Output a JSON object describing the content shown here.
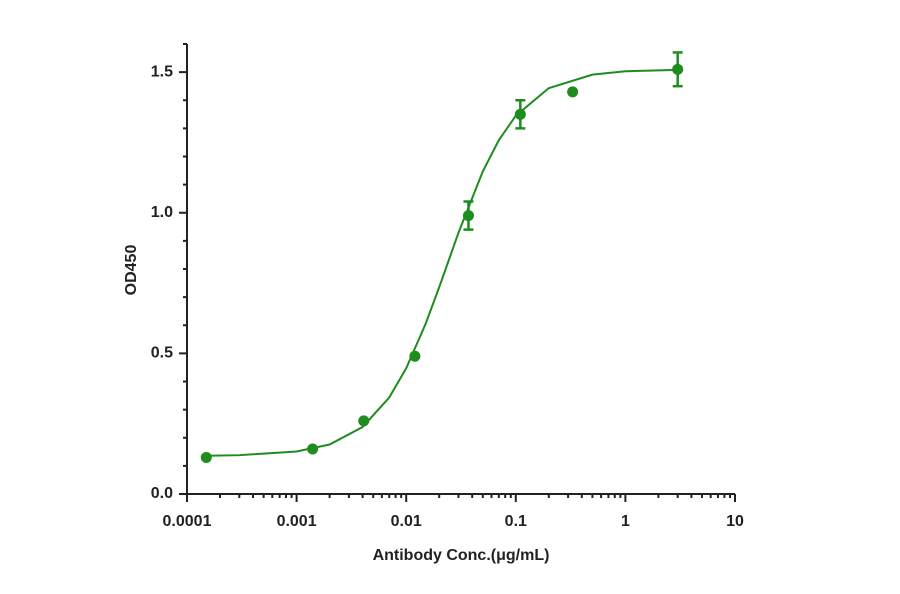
{
  "chart_data": {
    "type": "scatter",
    "x_label": "Antibody Conc.(μg/mL)",
    "y_label": "OD450",
    "xscale": "log",
    "xlim": [
      0.0001,
      10
    ],
    "ylim": [
      0,
      1.6
    ],
    "xticks": [
      0.0001,
      0.001,
      0.01,
      0.1,
      1,
      10
    ],
    "xminorticks": [
      0.0002,
      0.0003,
      0.0004,
      0.0005,
      0.0006,
      0.0007,
      0.0008,
      0.0009,
      0.002,
      0.003,
      0.004,
      0.005,
      0.006,
      0.007,
      0.008,
      0.009,
      0.02,
      0.03,
      0.04,
      0.05,
      0.06,
      0.07,
      0.08,
      0.09,
      0.2,
      0.3,
      0.4,
      0.5,
      0.6,
      0.7,
      0.8,
      0.9,
      2,
      3,
      4,
      5,
      6,
      7,
      8,
      9
    ],
    "yticks": [
      {
        "value": 0,
        "label": "0.0"
      },
      {
        "value": 0.5,
        "label": "0.5"
      },
      {
        "value": 1,
        "label": "1.0"
      },
      {
        "value": 1.5,
        "label": "1.5"
      }
    ],
    "yminorticks": [
      0.1,
      0.2,
      0.3,
      0.4,
      0.6,
      0.7,
      0.8,
      0.9,
      1.1,
      1.2,
      1.3,
      1.4,
      1.6
    ],
    "color": "#1f8c1f",
    "x": [
      0.00015,
      0.0014,
      0.0041,
      0.012,
      0.037,
      0.11,
      0.33,
      3
    ],
    "values": [
      0.13,
      0.16,
      0.26,
      0.49,
      0.99,
      1.35,
      1.43,
      1.51
    ],
    "errors": [
      null,
      null,
      null,
      null,
      0.05,
      0.05,
      null,
      0.06
    ],
    "curve": {
      "x": [
        0.00015,
        0.0003,
        0.001,
        0.002,
        0.004,
        0.007,
        0.01,
        0.015,
        0.02,
        0.03,
        0.05,
        0.07,
        0.1,
        0.2,
        0.5,
        1,
        3
      ],
      "values": [
        0.136,
        0.138,
        0.151,
        0.176,
        0.238,
        0.343,
        0.447,
        0.604,
        0.735,
        0.929,
        1.147,
        1.258,
        1.345,
        1.443,
        1.491,
        1.503,
        1.508
      ]
    }
  }
}
